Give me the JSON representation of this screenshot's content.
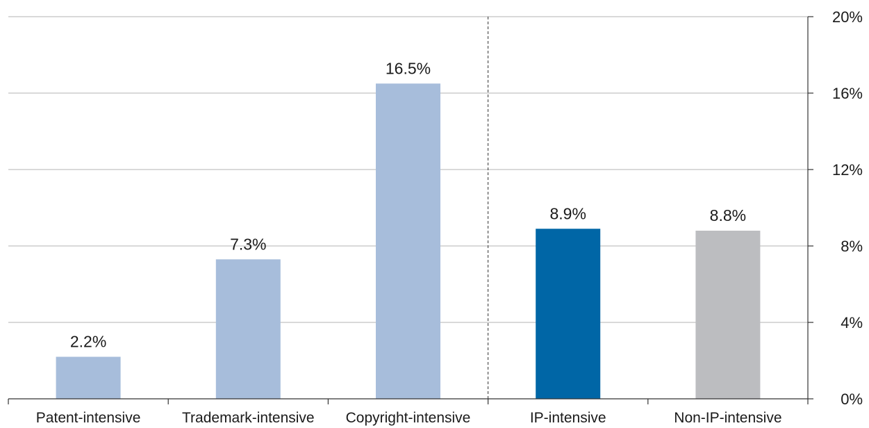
{
  "chart_data": {
    "type": "bar",
    "categories": [
      "Patent-intensive",
      "Trademark-intensive",
      "Copyright-intensive",
      "IP-intensive",
      "Non-IP-intensive"
    ],
    "values": [
      2.2,
      7.3,
      16.5,
      8.9,
      8.8
    ],
    "value_labels": [
      "2.2%",
      "7.3%",
      "16.5%",
      "8.9%",
      "8.8%"
    ],
    "bar_colors": [
      "#a7bddb",
      "#a7bddb",
      "#a7bddb",
      "#0066a6",
      "#bcbdc0"
    ],
    "ylim": [
      0,
      20
    ],
    "yticks": [
      0,
      4,
      8,
      12,
      16,
      20
    ],
    "ytick_labels": [
      "0%",
      "4%",
      "8%",
      "12%",
      "16%",
      "20%"
    ],
    "y_axis_side": "right",
    "grid": true,
    "separator_after_category": "Copyright-intensive",
    "title": "",
    "xlabel": "",
    "ylabel": ""
  }
}
